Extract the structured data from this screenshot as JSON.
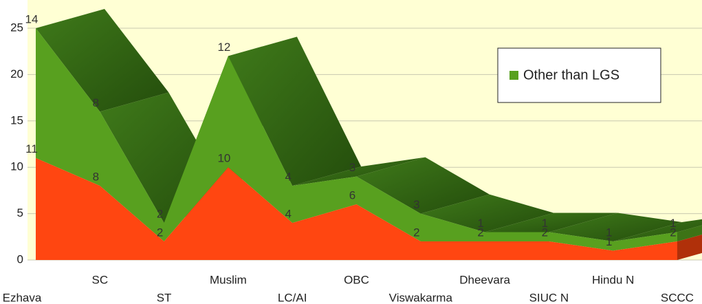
{
  "chart_data": {
    "type": "area",
    "stacked": true,
    "categories": [
      "Ezhava",
      "SC",
      "ST",
      "Muslim",
      "LC/AI",
      "OBC",
      "Viswakarma",
      "Dheevara",
      "SIUC N",
      "Hindu N",
      "SCCC"
    ],
    "series": [
      {
        "color": "#ff4611",
        "values": [
          11,
          8,
          2,
          10,
          4,
          6,
          2,
          2,
          2,
          1,
          2
        ]
      },
      {
        "name": "Other than LGS",
        "color": "#58a01f",
        "values": [
          14,
          8,
          2,
          12,
          4,
          3,
          3,
          1,
          1,
          1,
          1
        ]
      }
    ],
    "ylim": [
      0,
      25
    ],
    "yticks": [
      0,
      5,
      10,
      15,
      20,
      25
    ],
    "grid": true,
    "legend": "upper right"
  }
}
